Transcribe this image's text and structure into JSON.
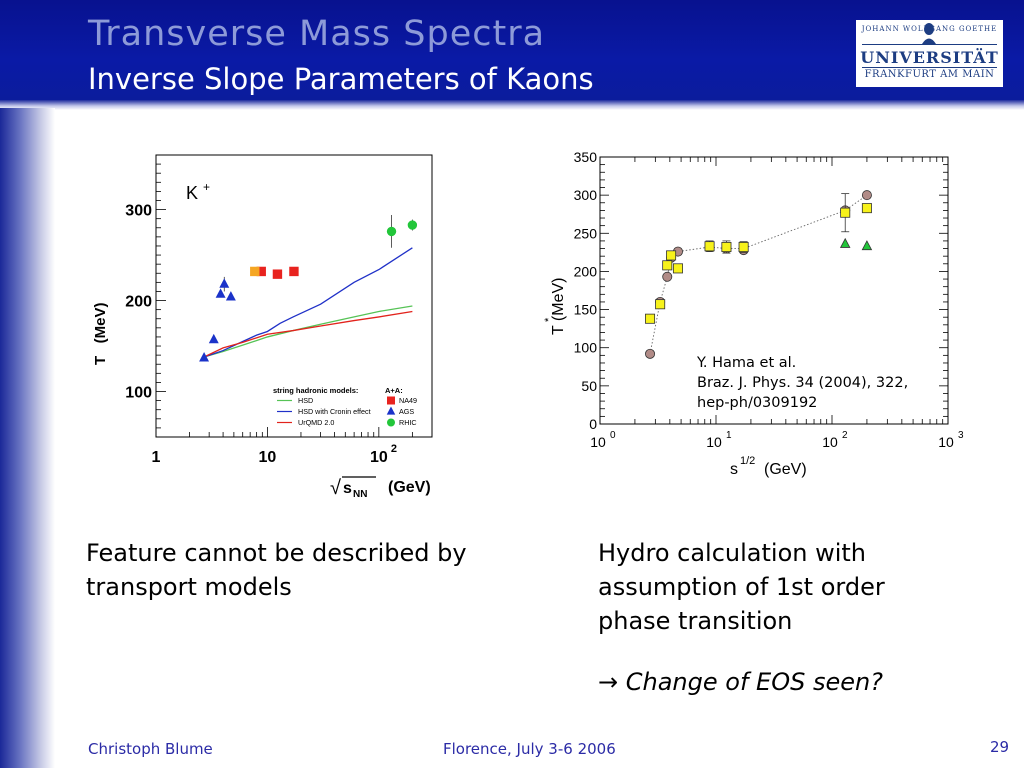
{
  "slide": {
    "title": "Transverse Mass Spectra",
    "subtitle": "Inverse Slope Parameters of Kaons",
    "logo": {
      "top_text": "JOHANN WOLFGANG GOETHE",
      "main_text": "UNIVERSITÄT",
      "bottom_text": "FRANKFURT AM MAIN"
    },
    "caption_left": "Feature cannot be described by transport models",
    "caption_right": "Hydro calculation with assumption of 1st order phase transition",
    "conclusion_arrow": "→",
    "conclusion": "Change of EOS seen?",
    "footer": {
      "author": "Christoph Blume",
      "event": "Florence, July 3-6 2006",
      "page": "29"
    }
  },
  "chart_data": [
    {
      "type": "scatter",
      "particle_label": "K",
      "particle_charge": "+",
      "ylabel": "T   (MeV)",
      "xlabel_prefix": "√",
      "xlabel_symbol": "s",
      "xlabel_subscript": "NN",
      "xlabel_unit": "(GeV)",
      "x_scale": "log",
      "xlim": [
        1,
        300
      ],
      "ylim": [
        50,
        360
      ],
      "x_ticks": [
        {
          "value": 1,
          "label": "1"
        },
        {
          "value": 10,
          "label": "10"
        },
        {
          "value": 100,
          "label": "10",
          "sup": "2"
        }
      ],
      "y_ticks": [
        {
          "value": 100,
          "label": "100"
        },
        {
          "value": 200,
          "label": "200"
        },
        {
          "value": 300,
          "label": "300"
        }
      ],
      "legend_title_models": "string  hadronic  models:",
      "legend_title_data": "A+A:",
      "series": [
        {
          "name": "NA49",
          "kind": "points",
          "marker": "square",
          "color": "#e8231f",
          "x": [
            8.8,
            12.3,
            17.3
          ],
          "y": [
            232,
            229,
            232
          ],
          "err": [
            4,
            4,
            4
          ]
        },
        {
          "name": "AGS",
          "kind": "points",
          "marker": "triangle",
          "color": "#1b33c9",
          "x": [
            2.7,
            3.3,
            3.8,
            4.1,
            4.7
          ],
          "y": [
            137,
            157,
            207,
            218,
            204
          ],
          "err": [
            0,
            0,
            0,
            8,
            0
          ]
        },
        {
          "name": "RHIC",
          "kind": "points",
          "marker": "circle",
          "color": "#22c63a",
          "x": [
            130,
            200
          ],
          "y": [
            276,
            283
          ],
          "err": [
            18,
            6
          ]
        },
        {
          "name": "",
          "kind": "points",
          "marker": "square",
          "color": "#f5a623",
          "x": [
            7.7
          ],
          "y": [
            232
          ],
          "err": [
            4
          ]
        },
        {
          "name": "HSD",
          "kind": "line",
          "color": "#56c356",
          "x": [
            2.7,
            4,
            6,
            10,
            17,
            30,
            60,
            100,
            200
          ],
          "y": [
            138,
            144,
            151,
            160,
            167,
            174,
            182,
            188,
            194
          ]
        },
        {
          "name": "HSD with Cronin effect",
          "kind": "line",
          "color": "#2031c8",
          "x": [
            2.7,
            4,
            6,
            8,
            10,
            13,
            17,
            30,
            60,
            100,
            200
          ],
          "y": [
            138,
            145,
            155,
            162,
            166,
            175,
            182,
            196,
            220,
            234,
            258
          ]
        },
        {
          "name": "UrQMD 2.0",
          "kind": "line",
          "color": "#e2231c",
          "x": [
            2.7,
            4,
            6,
            10,
            17,
            30,
            60,
            100,
            200
          ],
          "y": [
            138,
            148,
            154,
            163,
            167,
            172,
            178,
            182,
            188
          ]
        }
      ]
    },
    {
      "type": "scatter",
      "ylabel": "T (MeV)",
      "ylabel_super": "*",
      "xlabel": "s",
      "xlabel_super": "1/2",
      "xlabel_unit": "(GeV)",
      "x_scale": "log",
      "xlim": [
        1,
        1000
      ],
      "ylim": [
        0,
        350
      ],
      "y_ticks": [
        0,
        50,
        100,
        150,
        200,
        250,
        300,
        350
      ],
      "x_ticks": [
        {
          "value": 1,
          "base": "10",
          "exp": "0"
        },
        {
          "value": 10,
          "base": "10",
          "exp": "1"
        },
        {
          "value": 100,
          "base": "10",
          "exp": "2"
        },
        {
          "value": 1000,
          "base": "10",
          "exp": "3"
        }
      ],
      "annotation": [
        "Y. Hama et al.",
        "Braz. J. Phys. 34 (2004), 322,",
        "hep-ph/0309192"
      ],
      "series": [
        {
          "kind": "line",
          "style": "dotted",
          "color": "#666666",
          "x": [
            2.7,
            3.3,
            3.8,
            4.1,
            4.7,
            8.8,
            12.3,
            17.3,
            130,
            200
          ],
          "y": [
            92,
            160,
            193,
            218,
            226,
            232,
            230,
            230,
            280,
            300
          ]
        },
        {
          "kind": "points",
          "marker": "circle",
          "color": "#b18b87",
          "x": [
            2.7,
            3.3,
            3.8,
            4.1,
            4.7,
            8.8,
            12.3,
            17.3,
            130,
            200
          ],
          "y": [
            92,
            160,
            193,
            218,
            226,
            232,
            230,
            228,
            280,
            300
          ]
        },
        {
          "kind": "points",
          "marker": "square",
          "color": "#f7f21b",
          "x": [
            2.7,
            3.3,
            3.8,
            4.1,
            4.7,
            8.8,
            12.3,
            17.3,
            130,
            200
          ],
          "y": [
            138,
            157,
            208,
            221,
            204,
            233,
            232,
            232,
            277,
            283
          ],
          "err": [
            0,
            0,
            0,
            0,
            0,
            7,
            8,
            7,
            25,
            0
          ]
        },
        {
          "kind": "points",
          "marker": "triangle",
          "color": "#22c63a",
          "x": [
            130,
            200
          ],
          "y": [
            236,
            233
          ]
        }
      ]
    }
  ]
}
